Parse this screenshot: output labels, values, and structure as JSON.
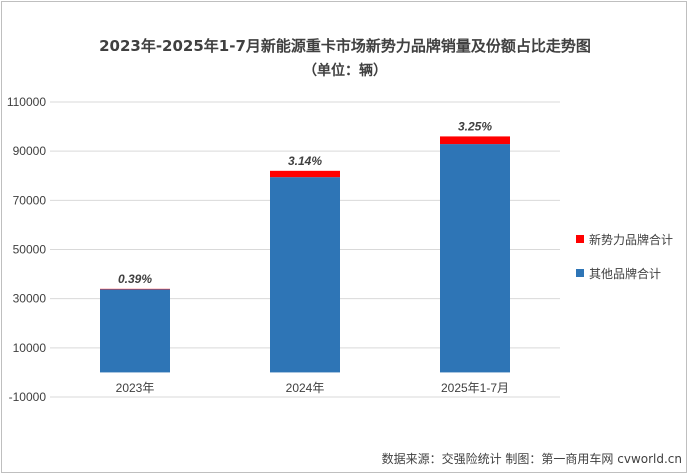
{
  "chart_data": {
    "type": "bar",
    "stacked": true,
    "title": "2023年-2025年1-7月新能源重卡市场新势力品牌销量及份额占比走势图",
    "subtitle": "（单位：辆）",
    "categories": [
      "2023年",
      "2024年",
      "2025年1-7月"
    ],
    "series": [
      {
        "name": "其他品牌合计",
        "color": "#2e75b6",
        "values": [
          33870,
          79430,
          92880
        ]
      },
      {
        "name": "新势力品牌合计",
        "color": "#ff0000",
        "values": [
          130,
          2570,
          3120
        ]
      }
    ],
    "share_labels": [
      "0.39%",
      "3.14%",
      "3.25%"
    ],
    "ylim": [
      -10000,
      110000
    ],
    "yticks": [
      "-10000",
      "10000",
      "30000",
      "50000",
      "70000",
      "90000",
      "110000"
    ],
    "grid": true,
    "legend_position": "right",
    "source": "数据来源：交强险统计   制图：第一商用车网 cvworld.cn"
  }
}
